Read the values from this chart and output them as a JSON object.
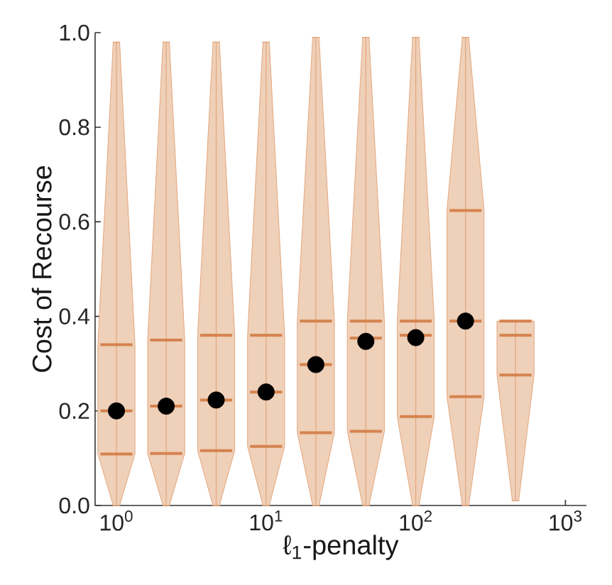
{
  "chart_data": {
    "type": "box",
    "xlabel": "ℓ$_{1}$-penalty",
    "ylabel": "Cost of Recourse",
    "log": "x",
    "color": "#efd0b9",
    "x": [
      1,
      2.15,
      4.64,
      10,
      21.5,
      46.4,
      100,
      215,
      464
    ],
    "boxes": [
      {
        "low": 0,
        "q1": 0.109,
        "median": 0.2,
        "q3": 0.34,
        "high": 0.98,
        "mean": 0.2
      },
      {
        "low": 0,
        "q1": 0.11,
        "median": 0.21,
        "q3": 0.35,
        "high": 0.98,
        "mean": 0.21
      },
      {
        "low": 0,
        "q1": 0.116,
        "median": 0.223,
        "q3": 0.36,
        "high": 0.98,
        "mean": 0.223
      },
      {
        "low": 0,
        "q1": 0.125,
        "median": 0.24,
        "q3": 0.36,
        "high": 0.98,
        "mean": 0.24
      },
      {
        "low": 0,
        "q1": 0.154,
        "median": 0.298,
        "q3": 0.39,
        "high": 0.99,
        "mean": 0.298
      },
      {
        "low": 0,
        "q1": 0.157,
        "median": 0.354,
        "q3": 0.39,
        "high": 0.99,
        "mean": 0.347
      },
      {
        "low": 0,
        "q1": 0.188,
        "median": 0.36,
        "q3": 0.39,
        "high": 0.99,
        "mean": 0.355
      },
      {
        "low": 0,
        "q1": 0.23,
        "median": 0.39,
        "q3": 0.624,
        "high": 0.99,
        "mean": 0.39
      },
      {
        "low": 0.01,
        "q1": 0.276,
        "median": 0.36,
        "q3": 0.39,
        "high": 0.39
      }
    ],
    "xlim": [
      0.72,
      1380
    ],
    "xticks": [
      {
        "value": 1,
        "label": "10$^{0}$"
      },
      {
        "value": 10,
        "label": "10$^{1}$"
      },
      {
        "value": 100,
        "label": "10$^{2}$"
      },
      {
        "value": 1000,
        "label": "10$^{3}$"
      }
    ],
    "ylim": [
      0,
      1
    ],
    "yticks": [
      {
        "value": 0,
        "label": "0.0"
      },
      {
        "value": 0.2,
        "label": "0.2"
      },
      {
        "value": 0.4,
        "label": "0.4"
      },
      {
        "value": 0.6,
        "label": "0.6"
      },
      {
        "value": 0.8,
        "label": "0.8"
      },
      {
        "value": 1,
        "label": "1.0"
      }
    ]
  }
}
